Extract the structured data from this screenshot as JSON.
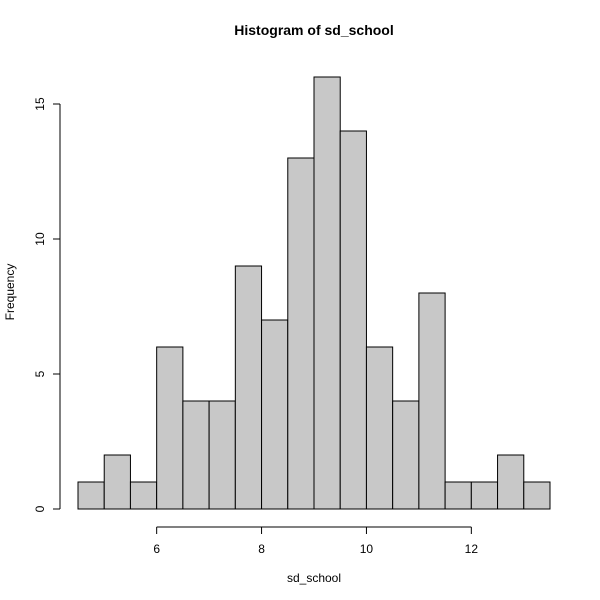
{
  "chart_data": {
    "type": "bar",
    "title": "Histogram of sd_school",
    "xlabel": "sd_school",
    "ylabel": "Frequency",
    "bin_edges": [
      4.5,
      5.0,
      5.5,
      6.0,
      6.5,
      7.0,
      7.5,
      8.0,
      8.5,
      9.0,
      9.5,
      10.0,
      10.5,
      11.0,
      11.5,
      12.0,
      12.5,
      13.0,
      13.5
    ],
    "values": [
      1,
      2,
      1,
      6,
      4,
      4,
      9,
      7,
      13,
      16,
      14,
      6,
      4,
      8,
      1,
      1,
      2,
      1
    ],
    "xlim": [
      4.5,
      13.5
    ],
    "ylim": [
      0,
      16
    ],
    "x_ticks": [
      6,
      8,
      10,
      12
    ],
    "x_tick_labels": [
      "6",
      "8",
      "10",
      "12"
    ],
    "y_ticks": [
      0,
      5,
      10,
      15
    ],
    "y_tick_labels": [
      "0",
      "5",
      "10",
      "15"
    ],
    "bar_color": "#c8c8c8",
    "grid": false,
    "legend": "none"
  }
}
